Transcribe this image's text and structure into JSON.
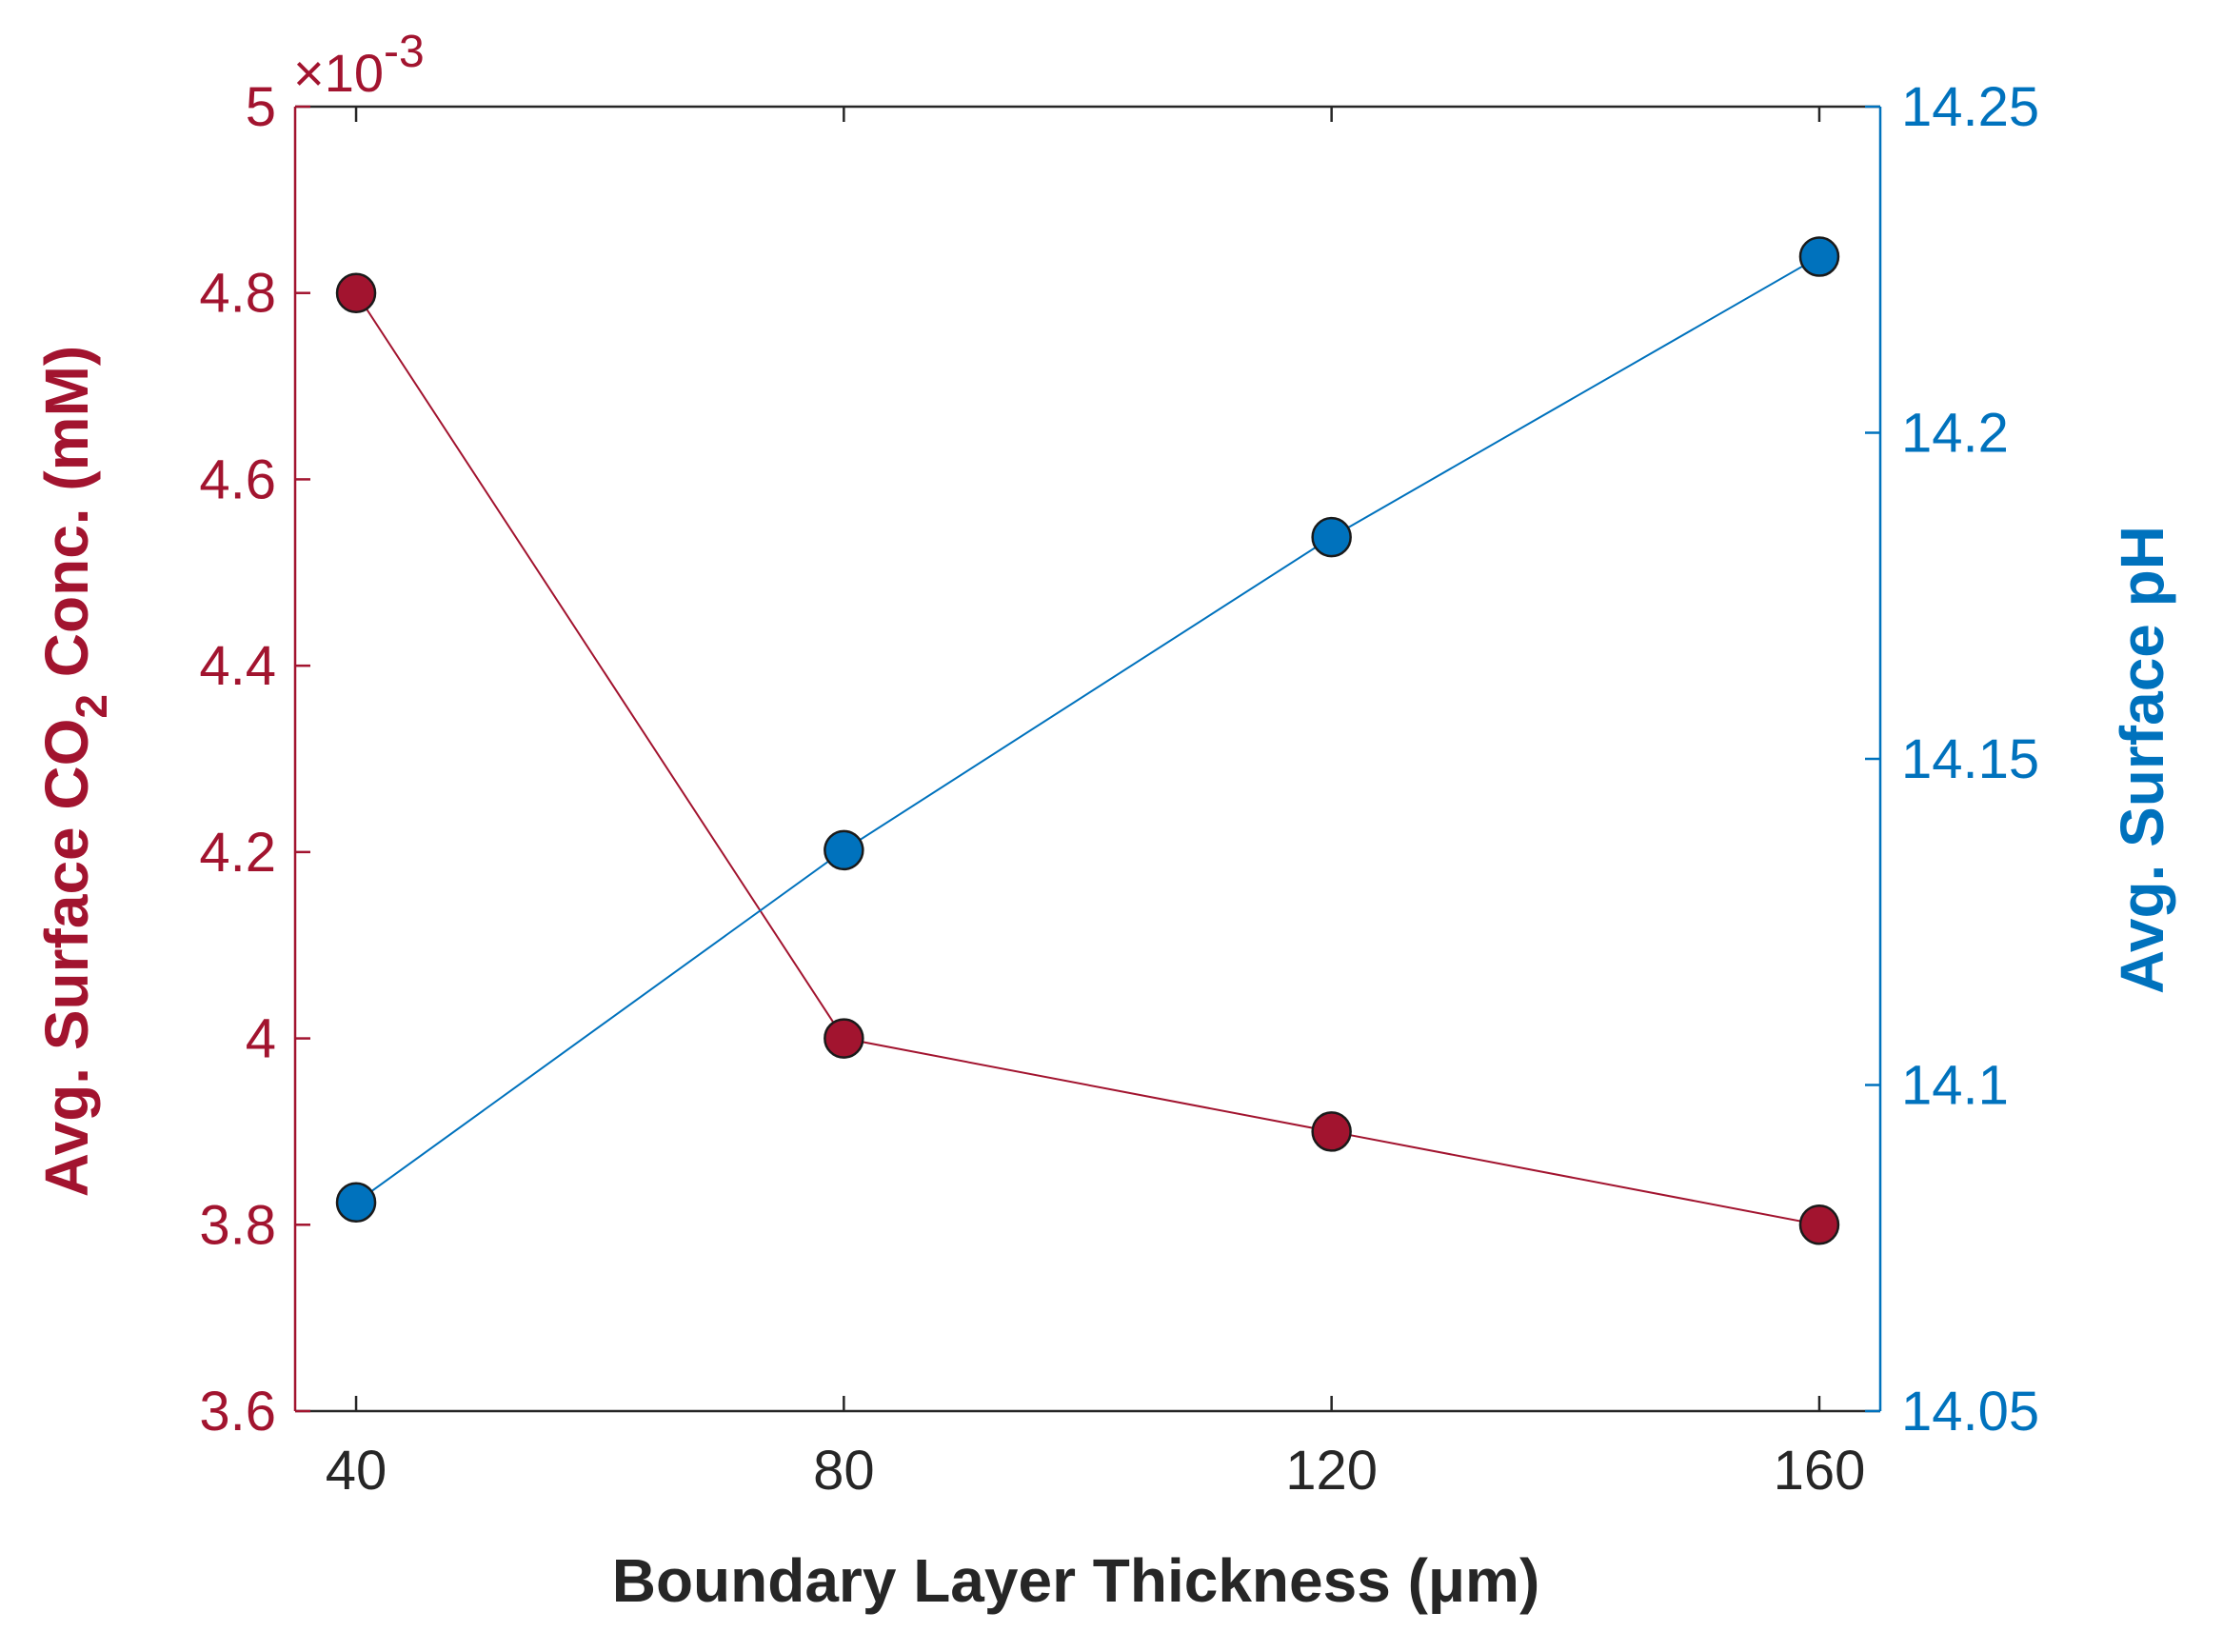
{
  "chart_data": {
    "type": "line",
    "x": [
      40,
      80,
      120,
      160
    ],
    "xlabel": "Boundary Layer Thickness (μm)",
    "x_ticks": [
      "40",
      "80",
      "120",
      "160"
    ],
    "xlim": [
      35,
      165
    ],
    "left_axis": {
      "label_prefix": "Avg. Surface CO",
      "label_subscript": "2",
      "label_suffix": " Conc. (mM)",
      "multiplier_prefix": "×10",
      "multiplier_exponent": "-3",
      "ylim": [
        3.6,
        5.0
      ],
      "ticks": [
        3.6,
        3.8,
        4.0,
        4.2,
        4.4,
        4.6,
        4.8,
        5.0
      ],
      "tick_labels": [
        "3.6",
        "3.8",
        "4",
        "4.2",
        "4.4",
        "4.6",
        "4.8",
        "5"
      ],
      "color": "#A2142F"
    },
    "right_axis": {
      "label": "Avg. Surface pH",
      "ylim": [
        14.05,
        14.25
      ],
      "ticks": [
        14.05,
        14.1,
        14.15,
        14.2,
        14.25
      ],
      "tick_labels": [
        "14.05",
        "14.1",
        "14.15",
        "14.2",
        "14.25"
      ],
      "color": "#0072BD"
    },
    "series": [
      {
        "name": "Avg. Surface CO2 Conc.",
        "axis": "left",
        "values": [
          4.8,
          4.0,
          3.9,
          3.8
        ],
        "color": "#A2142F"
      },
      {
        "name": "Avg. Surface pH",
        "axis": "right",
        "values": [
          14.082,
          14.136,
          14.184,
          14.227
        ],
        "color": "#0072BD"
      }
    ]
  }
}
